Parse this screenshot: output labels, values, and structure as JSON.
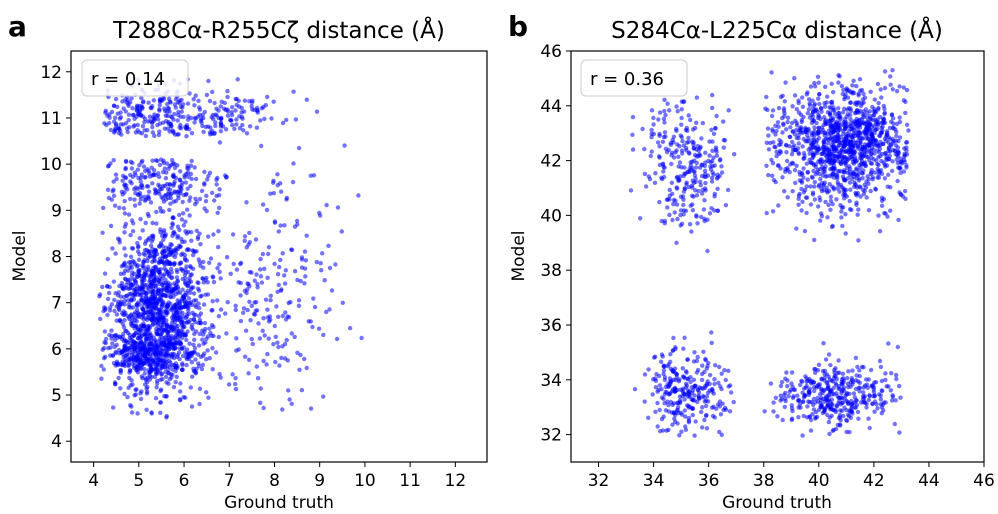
{
  "chart_data": [
    {
      "type": "scatter",
      "panel_label": "a",
      "title": "T288Cα-R255Cζ distance (Å)",
      "xlabel": "Ground truth",
      "ylabel": "Model",
      "xlim": [
        3.5,
        12.7
      ],
      "ylim": [
        3.55,
        12.45
      ],
      "xticks": [
        4,
        5,
        6,
        7,
        8,
        9,
        10,
        11,
        12
      ],
      "yticks": [
        4,
        5,
        6,
        7,
        8,
        9,
        10,
        11,
        12
      ],
      "annotation": "r = 0.14",
      "annotation_position": "top-left",
      "grid": false,
      "point_color": "#0000ff",
      "clusters": [
        {
          "x": [
            4.1,
            6.8
          ],
          "y": [
            4.5,
            9.0
          ],
          "n": 1300,
          "cx": 5.45,
          "cy": 6.9,
          "sx": 0.55,
          "sy": 0.95
        },
        {
          "x": [
            4.2,
            6.8
          ],
          "y": [
            4.8,
            6.3
          ],
          "n": 260,
          "cx": 5.2,
          "cy": 5.9,
          "sx": 0.5,
          "sy": 0.25
        },
        {
          "x": [
            4.2,
            7.0
          ],
          "y": [
            9.0,
            10.1
          ],
          "n": 220,
          "cx": 5.4,
          "cy": 9.6,
          "sx": 0.7,
          "sy": 0.35
        },
        {
          "x": [
            4.2,
            9.0
          ],
          "y": [
            10.6,
            12.0
          ],
          "n": 330,
          "cx": 5.6,
          "cy": 11.0,
          "sx": 1.2,
          "sy": 0.35
        },
        {
          "x": [
            6.0,
            10.0
          ],
          "y": [
            4.5,
            10.5
          ],
          "n": 240,
          "cx": 7.8,
          "cy": 7.2,
          "sx": 0.85,
          "sy": 1.4
        }
      ]
    },
    {
      "type": "scatter",
      "panel_label": "b",
      "title": "S284Cα-L225Cα distance (Å)",
      "xlabel": "Ground truth",
      "ylabel": "Model",
      "xlim": [
        31.0,
        46.0
      ],
      "ylim": [
        31.0,
        46.0
      ],
      "xticks": [
        32,
        34,
        36,
        38,
        40,
        42,
        44,
        46
      ],
      "yticks": [
        32,
        34,
        36,
        38,
        40,
        42,
        44,
        46
      ],
      "annotation": "r = 0.36",
      "annotation_position": "top-left",
      "grid": false,
      "point_color": "#0000ff",
      "clusters": [
        {
          "x": [
            33.0,
            37.0
          ],
          "y": [
            38.5,
            44.5
          ],
          "n": 280,
          "cx": 35.2,
          "cy": 42.0,
          "sx": 0.8,
          "sy": 1.3
        },
        {
          "x": [
            38.0,
            43.3
          ],
          "y": [
            37.5,
            45.3
          ],
          "n": 1150,
          "cx": 40.9,
          "cy": 42.5,
          "sx": 1.3,
          "sy": 1.1
        },
        {
          "x": [
            33.0,
            37.0
          ],
          "y": [
            31.8,
            36.5
          ],
          "n": 270,
          "cx": 35.2,
          "cy": 33.6,
          "sx": 0.8,
          "sy": 0.75
        },
        {
          "x": [
            38.0,
            43.0
          ],
          "y": [
            31.8,
            36.5
          ],
          "n": 380,
          "cx": 40.5,
          "cy": 33.5,
          "sx": 1.1,
          "sy": 0.6
        }
      ]
    }
  ]
}
